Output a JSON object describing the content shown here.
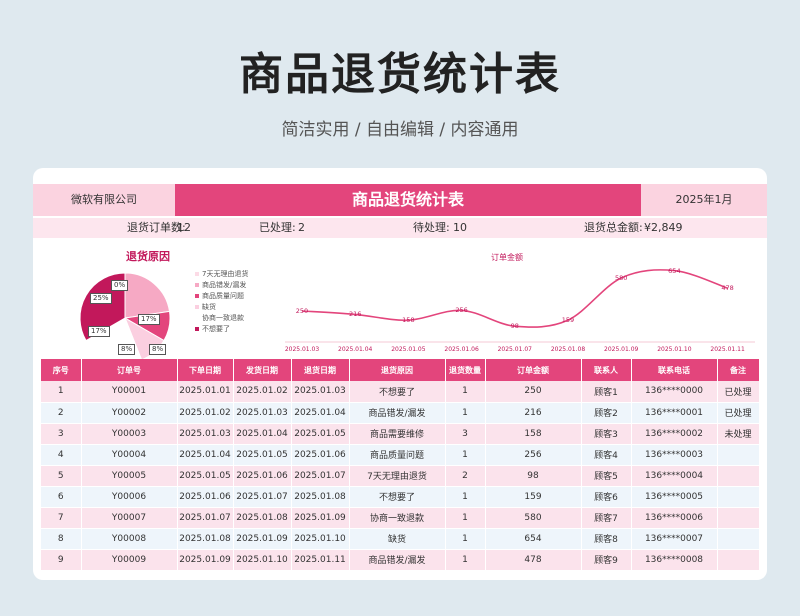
{
  "page": {
    "title": "商品退货统计表",
    "subtitle": "简洁实用 / 自由编辑 / 内容通用"
  },
  "sheet": {
    "company": "微软有限公司",
    "title": "商品退货统计表",
    "date": "2025年1月",
    "summary": {
      "orders_label": "退货订单数:",
      "orders_value": "12",
      "processed_label": "已处理:",
      "processed_value": "2",
      "pending_label": "待处理:",
      "pending_value": "10",
      "amount_label": "退货总金额:",
      "amount_value": "¥2,849"
    }
  },
  "pie": {
    "title": "退货原因",
    "legend": [
      "7天无理由退货",
      "商品错发/漏发",
      "商品质量问题",
      "缺货",
      "协商一致退款",
      "不想要了"
    ],
    "legend_colors": [
      "#fcdbe6",
      "#f6a9c4",
      "#e3457c",
      "#fbcfe0",
      "#ffffff",
      "#c2185b"
    ],
    "slices": [
      {
        "label": "0%",
        "value": 0
      },
      {
        "label": "17%",
        "value": 17
      },
      {
        "label": "8%",
        "value": 8
      },
      {
        "label": "8%",
        "value": 8
      },
      {
        "label": "17%",
        "value": 17
      },
      {
        "label": "25%",
        "value": 25
      }
    ]
  },
  "chart_data": {
    "type": "line",
    "title": "订单金额",
    "x": [
      "2025.01.03",
      "2025.01.04",
      "2025.01.05",
      "2025.01.06",
      "2025.01.07",
      "2025.01.08",
      "2025.01.09",
      "2025.01.10",
      "2025.01.11"
    ],
    "values": [
      250,
      216,
      158,
      256,
      98,
      159,
      580,
      654,
      478
    ],
    "ylim": [
      0,
      700
    ],
    "color": "#e3457c"
  },
  "table": {
    "headers": [
      "序号",
      "订单号",
      "下单日期",
      "发货日期",
      "退货日期",
      "退货原因",
      "退货数量",
      "订单金额",
      "联系人",
      "联系电话",
      "备注"
    ],
    "rows": [
      [
        "1",
        "Y00001",
        "2025.01.01",
        "2025.01.02",
        "2025.01.03",
        "不想要了",
        "1",
        "250",
        "顾客1",
        "136****0000",
        "已处理"
      ],
      [
        "2",
        "Y00002",
        "2025.01.02",
        "2025.01.03",
        "2025.01.04",
        "商品错发/漏发",
        "1",
        "216",
        "顾客2",
        "136****0001",
        "已处理"
      ],
      [
        "3",
        "Y00003",
        "2025.01.03",
        "2025.01.04",
        "2025.01.05",
        "商品需要维修",
        "3",
        "158",
        "顾客3",
        "136****0002",
        "未处理"
      ],
      [
        "4",
        "Y00004",
        "2025.01.04",
        "2025.01.05",
        "2025.01.06",
        "商品质量问题",
        "1",
        "256",
        "顾客4",
        "136****0003",
        ""
      ],
      [
        "5",
        "Y00005",
        "2025.01.05",
        "2025.01.06",
        "2025.01.07",
        "7天无理由退货",
        "2",
        "98",
        "顾客5",
        "136****0004",
        ""
      ],
      [
        "6",
        "Y00006",
        "2025.01.06",
        "2025.01.07",
        "2025.01.08",
        "不想要了",
        "1",
        "159",
        "顾客6",
        "136****0005",
        ""
      ],
      [
        "7",
        "Y00007",
        "2025.01.07",
        "2025.01.08",
        "2025.01.09",
        "协商一致退款",
        "1",
        "580",
        "顾客7",
        "136****0006",
        ""
      ],
      [
        "8",
        "Y00008",
        "2025.01.08",
        "2025.01.09",
        "2025.01.10",
        "缺货",
        "1",
        "654",
        "顾客8",
        "136****0007",
        ""
      ],
      [
        "9",
        "Y00009",
        "2025.01.09",
        "2025.01.10",
        "2025.01.11",
        "商品错发/漏发",
        "1",
        "478",
        "顾客9",
        "136****0008",
        ""
      ]
    ]
  }
}
